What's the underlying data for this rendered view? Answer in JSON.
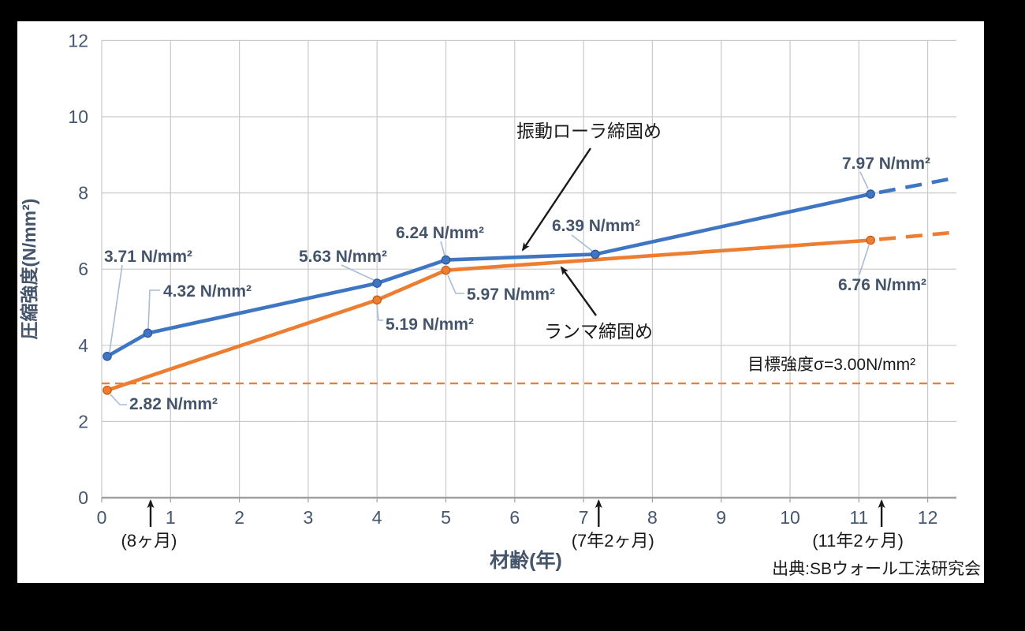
{
  "window": {
    "background": "#000000",
    "canvas_background": "#ffffff"
  },
  "chart_data": {
    "type": "line",
    "title": "",
    "xlabel": "材齢(年)",
    "ylabel": "圧縮強度(N/mm²)",
    "xlim": [
      0,
      12.42
    ],
    "ylim": [
      0,
      12
    ],
    "xticks": [
      0,
      1,
      2,
      3,
      4,
      5,
      6,
      7,
      8,
      9,
      10,
      11,
      12
    ],
    "yticks": [
      0,
      2,
      4,
      6,
      8,
      10,
      12
    ],
    "grid": true,
    "axis_text_color": "#45566F",
    "gridline_color": "#C9C9C9",
    "axis_line_color": "#A0A0A0",
    "data_label_color": "#44546A",
    "leader_line_color": "#A8BBD9",
    "annotation_color": "#1A1A1A",
    "series": [
      {
        "name": "振動ローラ締固め",
        "color": "#3E76C3",
        "marker_edge": "#2E5597",
        "x": [
          0.08,
          0.67,
          4,
          5,
          7.17,
          11.17
        ],
        "y": [
          3.71,
          4.32,
          5.63,
          6.24,
          6.39,
          7.97
        ],
        "point_labels": [
          "3.71 N/mm²",
          "4.32 N/mm²",
          "5.63 N/mm²",
          "6.24 N/mm²",
          "6.39 N/mm²",
          "7.97 N/mm²"
        ],
        "dashed_extension": {
          "x": 12.42,
          "y": 8.4
        }
      },
      {
        "name": "ランマ締固め",
        "color": "#ED7D31",
        "marker_edge": "#C55A11",
        "x": [
          0.08,
          4,
          5,
          11.17
        ],
        "y": [
          2.82,
          5.19,
          5.97,
          6.76
        ],
        "point_labels": [
          "2.82 N/mm²",
          "5.19 N/mm²",
          "5.97 N/mm²",
          "6.76 N/mm²"
        ],
        "dashed_extension": {
          "x": 12.42,
          "y": 6.97
        }
      }
    ],
    "target_line": {
      "value": 3.0,
      "label": "目標強度σ=3.00N/mm²",
      "color": "#ED7D31"
    },
    "x_axis_annotations": [
      {
        "x": 0.71,
        "label": "(8ヶ月)"
      },
      {
        "x": 7.22,
        "label": "(7年2ヶ月)"
      },
      {
        "x": 11.33,
        "label": "(11年2ヶ月)"
      }
    ],
    "source": "出典:SBウォール工法研究会"
  }
}
